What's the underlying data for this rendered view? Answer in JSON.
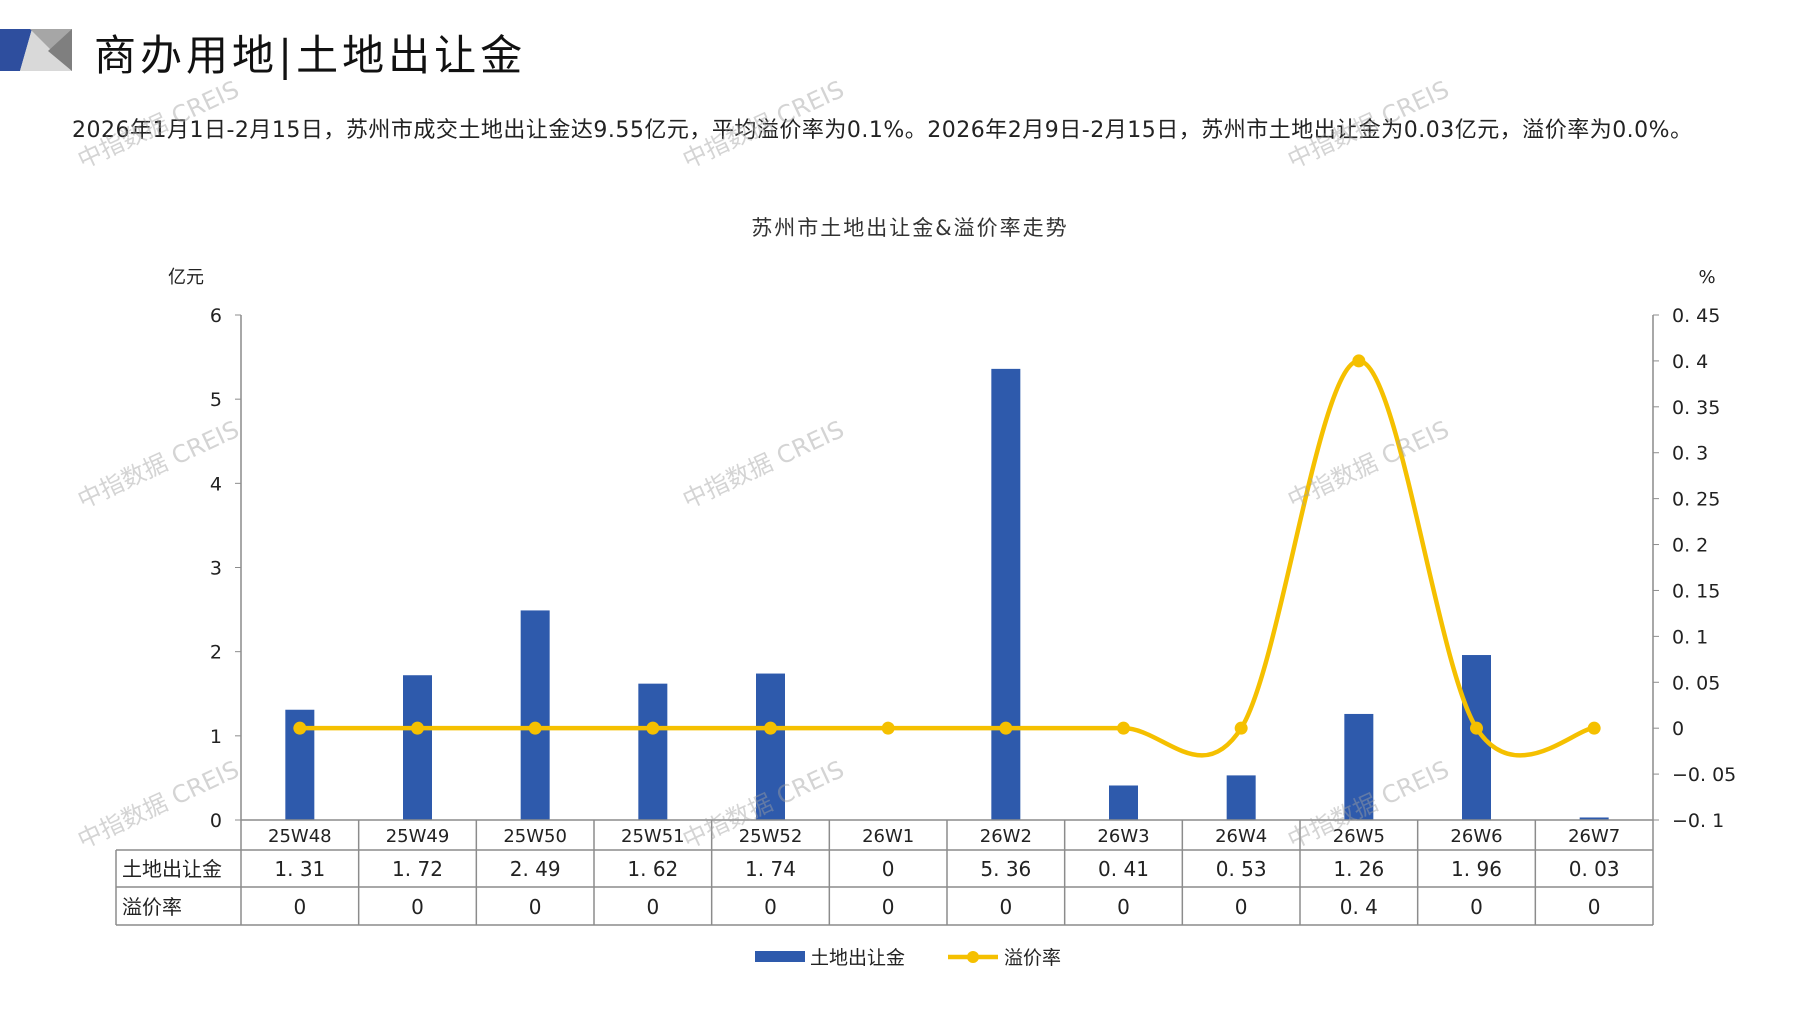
{
  "header": {
    "title": "商办用地|土地出让金",
    "summary": "2026年1月1日-2月15日，苏州市成交土地出让金达9.55亿元，平均溢价率为0.1%。2026年2月9日-2月15日，苏州市土地出让金为0.03亿元，溢价率为0.0%。"
  },
  "watermark": "中指数据 CREIS",
  "colors": {
    "bar": "#2E5AAC",
    "line": "#F5C000",
    "logo_blue": "#2E4E9E",
    "logo_gray": "#9A9A9A"
  },
  "chart_data": {
    "type": "bar+line",
    "title": "苏州市土地出让金&溢价率走势",
    "categories": [
      "25W48",
      "25W49",
      "25W50",
      "25W51",
      "25W52",
      "26W1",
      "26W2",
      "26W3",
      "26W4",
      "26W5",
      "26W6",
      "26W7"
    ],
    "series": [
      {
        "name": "土地出让金",
        "type": "bar",
        "axis": "left",
        "values": [
          1.31,
          1.72,
          2.49,
          1.62,
          1.74,
          0,
          5.36,
          0.41,
          0.53,
          1.26,
          1.96,
          0.03
        ],
        "display": [
          "1.31",
          "1.72",
          "2.49",
          "1.62",
          "1.74",
          "0",
          "5.36",
          "0.41",
          "0.53",
          "1.26",
          "1.96",
          "0.03"
        ]
      },
      {
        "name": "溢价率",
        "type": "line",
        "axis": "right",
        "smooth": true,
        "values": [
          0,
          0,
          0,
          0,
          0,
          0,
          0,
          0,
          0,
          0.4,
          0,
          0
        ],
        "display": [
          "0",
          "0",
          "0",
          "0",
          "0",
          "0",
          "0",
          "0",
          "0",
          "0.4",
          "0",
          "0"
        ]
      }
    ],
    "left_axis": {
      "unit": "亿元",
      "range": [
        0,
        6
      ],
      "ticks": [
        "0",
        "1",
        "2",
        "3",
        "4",
        "5",
        "6"
      ]
    },
    "right_axis": {
      "unit": "%",
      "range": [
        -0.1,
        0.45
      ],
      "ticks": [
        "-0.1",
        "-0.05",
        "0",
        "0.05",
        "0.1",
        "0.15",
        "0.2",
        "0.25",
        "0.3",
        "0.35",
        "0.4",
        "0.45"
      ]
    },
    "data_table": true,
    "legend": "bottom",
    "grid": false
  }
}
